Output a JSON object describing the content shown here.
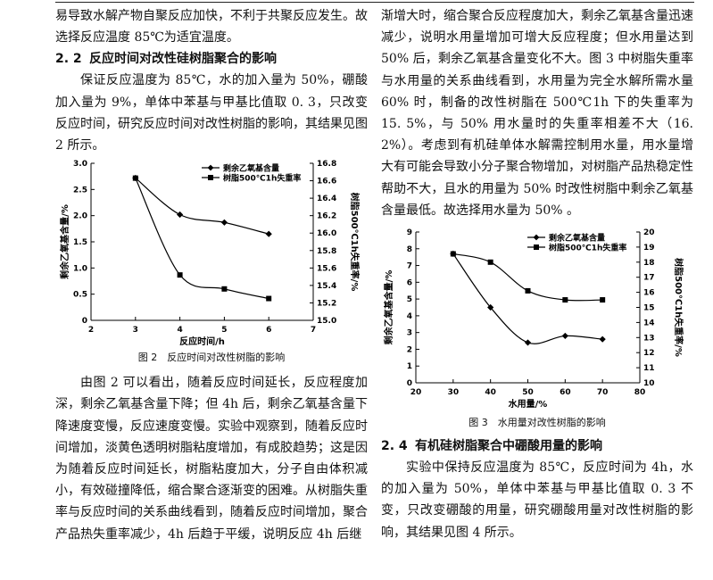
{
  "left": {
    "para1": "易导致水解产物自聚反应加快，不利于共聚反应发生。故选择反应温度 85℃为适宜温度。",
    "h22_num": "2. 2",
    "h22_text": "反应时间对改性硅树脂聚合的影响",
    "para2": "保证反应温度为 85℃，水的加入量为 50%，硼酸加入量为 9%，单体中苯基与甲基比值取 0. 3，只改变反应时间，研究反应时间对改性树脂的影响，其结果见图 2 所示。",
    "fig2_caption": "图 2　反应时间对改性树脂的影响",
    "para3": "由图 2 可以看出，随着反应时间延长，反应程度加深，剩余乙氧基含量下降；但 4h 后，剩余乙氧基含量下降速度变慢，反应速度变慢。实验中观察到，随着反应时间增加，淡黄色透明树脂粘度增加，有成胶趋势；这是因为随着反应时间延长，树脂粘度加大，分子自由体积减小，有效碰撞降低，缩合聚合逐渐变的困难。从树脂失重率与反应时间的关系曲线看到，随着反应时间增加，聚合产品热失重率减少，4h 后趋于平缓，说明反应 4h 后继"
  },
  "right": {
    "para1": "渐增大时，缩合聚合反应程度加大，剩余乙氧基含量迅速减少，说明水用量增加可增大反应程度；但水用量达到 50% 后，剩余乙氧基含量变化不大。图 3 中树脂失重率与水用量的关系曲线看到，水用量为完全水解所需水量 60% 时，制备的改性树脂在 500℃1h 下的失重率为 15. 5%，与 50% 用水量时的失重率相差不大（16. 2%）。考虑到有机硅单体水解需控制用水量，用水量增大有可能会导致小分子聚合物增加，对树脂产品热稳定性帮助不大，且水的用量为 50% 时改性树脂中剩余乙氧基含量最低。故选择用水量为 50% 。",
    "fig3_caption": "图 3　水用量对改性树脂的影响",
    "h24_num": "2. 4",
    "h24_text": "有机硅树脂聚合中硼酸用量的影响",
    "para2": "实验中保持反应温度为 85℃，反应时间为 4h，水的加入量为 50%，单体中苯基与甲基比值取 0. 3 不变，只改变硼酸的用量，研究硼酸用量对改性树脂的影响，其结果见图 4 所示。"
  },
  "chart_data": [
    {
      "type": "line",
      "figure": "图 2",
      "xlabel": "反应时间/h",
      "ylabel_left": "剩余乙氧基含量/%",
      "ylabel_right": "树脂500℃1h失重率/%",
      "xlim": [
        2,
        7
      ],
      "ylim_left": [
        0,
        3.0
      ],
      "ylim_right": [
        15.0,
        16.8
      ],
      "x_ticks": [
        "2",
        "3",
        "4",
        "5",
        "6",
        "7"
      ],
      "y_left_ticks": [
        "0",
        "0.5",
        "1.0",
        "1.5",
        "2.0",
        "2.5",
        "3.0"
      ],
      "y_right_ticks": [
        "15.0",
        "15.2",
        "15.4",
        "15.6",
        "15.8",
        "16.0",
        "16.2",
        "16.4",
        "16.6",
        "16.8"
      ],
      "legend_position": "top-right",
      "series": [
        {
          "name": "剩余乙氧基含量",
          "axis": "left",
          "marker": "diamond",
          "x": [
            3,
            4,
            5,
            6
          ],
          "values": [
            2.72,
            2.02,
            1.87,
            1.65
          ]
        },
        {
          "name": "树脂500℃1h失重率",
          "axis": "right",
          "marker": "square",
          "x": [
            3,
            4,
            5,
            6
          ],
          "values": [
            16.63,
            15.52,
            15.36,
            15.25
          ]
        }
      ]
    },
    {
      "type": "line",
      "figure": "图 3",
      "xlabel": "水用量/%",
      "ylabel_left": "剩余乙氧基含量/%",
      "ylabel_right": "树脂500℃1h失重率/%",
      "xlim": [
        20,
        80
      ],
      "ylim_left": [
        0,
        9
      ],
      "ylim_right": [
        10,
        20
      ],
      "x_ticks": [
        "20",
        "30",
        "40",
        "50",
        "60",
        "70",
        "80"
      ],
      "y_left_ticks": [
        "0",
        "1",
        "2",
        "3",
        "4",
        "5",
        "6",
        "7",
        "8",
        "9"
      ],
      "y_right_ticks": [
        "10",
        "11",
        "12",
        "13",
        "14",
        "15",
        "16",
        "17",
        "18",
        "19",
        "20"
      ],
      "legend_position": "top-right",
      "series": [
        {
          "name": "剩余乙氧基含量",
          "axis": "left",
          "marker": "diamond",
          "x": [
            30,
            40,
            50,
            60,
            70
          ],
          "values": [
            7.7,
            4.5,
            2.4,
            2.8,
            2.6
          ]
        },
        {
          "name": "树脂500℃1h失重率",
          "axis": "right",
          "marker": "square",
          "x": [
            30,
            40,
            50,
            60,
            70
          ],
          "values": [
            18.55,
            18.0,
            16.1,
            15.5,
            15.5
          ]
        }
      ]
    }
  ]
}
